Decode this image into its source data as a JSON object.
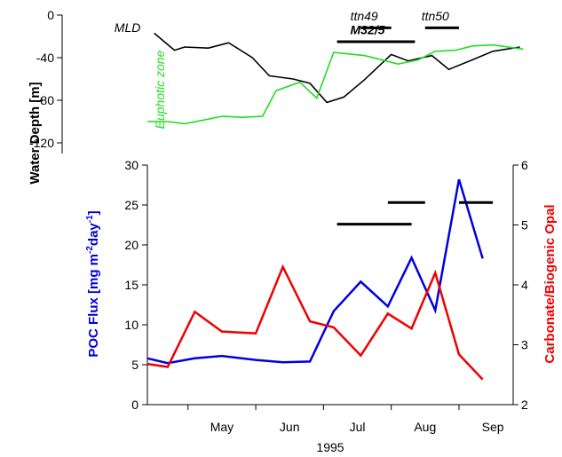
{
  "chart_data": {
    "type": "line",
    "xlabel": "1995",
    "x_tick_labels": [
      "May",
      "Jun",
      "Jul",
      "Aug",
      "Sep"
    ],
    "x_tick_months": [
      5,
      6,
      7,
      8,
      9
    ],
    "xlim_months": [
      4.4,
      9.8
    ],
    "depth_panel": {
      "ylabel": "Water Depth [m]",
      "ylim": [
        -130,
        0
      ],
      "yticks": [
        0,
        -40,
        -80,
        -120
      ],
      "series": [
        {
          "name": "MLD",
          "color": "#000000",
          "x_months": [
            4.5,
            4.8,
            4.95,
            5.3,
            5.6,
            5.95,
            6.2,
            6.55,
            6.8,
            7.05,
            7.3,
            7.6,
            8.0,
            8.25,
            8.6,
            8.85,
            9.2,
            9.5,
            9.9
          ],
          "y": [
            -17,
            -33,
            -30,
            -31,
            -26,
            -40,
            -57,
            -60,
            -64,
            -82,
            -77,
            -61,
            -37,
            -43,
            -38,
            -51,
            -42,
            -34,
            -30
          ]
        },
        {
          "name": "Euphotic zone",
          "color": "#22dd22",
          "x_months": [
            4.4,
            4.7,
            4.95,
            5.2,
            5.5,
            5.8,
            6.1,
            6.3,
            6.65,
            6.9,
            7.15,
            7.6,
            7.8,
            8.1,
            8.4,
            8.65,
            8.95,
            9.2,
            9.5,
            9.95
          ],
          "y": [
            -100,
            -100,
            -102,
            -99,
            -95,
            -96,
            -95,
            -71,
            -63,
            -78,
            -35,
            -38,
            -41,
            -46,
            -42,
            -34,
            -33,
            -29,
            -28,
            -32
          ]
        }
      ]
    },
    "flux_panel": {
      "ylabel_left": "POC Flux [mg m",
      "ylabel_left_sup1": "-2",
      "ylabel_left_mid": "day",
      "ylabel_left_sup2": "-1",
      "ylabel_left_end": "]",
      "ylim_left": [
        0,
        30
      ],
      "yticks_left": [
        0,
        5,
        10,
        15,
        20,
        25,
        30
      ],
      "ylabel_right": "Carbonate/Biogenic Opal",
      "ylim_right": [
        2,
        6
      ],
      "yticks_right": [
        2,
        3,
        4,
        5,
        6
      ],
      "series": [
        {
          "name": "POC Flux",
          "axis": "left",
          "color": "#0000dd",
          "x_months": [
            4.4,
            4.7,
            5.1,
            5.5,
            6.0,
            6.4,
            6.8,
            7.15,
            7.55,
            7.95,
            8.3,
            8.65,
            9.0,
            9.35
          ],
          "y": [
            5.8,
            5.2,
            5.8,
            6.1,
            5.6,
            5.3,
            5.4,
            11.7,
            15.4,
            12.3,
            18.4,
            11.8,
            28.2,
            18.3
          ]
        },
        {
          "name": "Carbonate/Biogenic Opal",
          "axis": "right",
          "color": "#ee0000",
          "x_months": [
            4.4,
            4.7,
            5.1,
            5.5,
            6.0,
            6.4,
            6.8,
            7.15,
            7.55,
            7.95,
            8.3,
            8.65,
            9.0,
            9.35
          ],
          "y": [
            2.68,
            2.63,
            3.55,
            3.22,
            3.19,
            4.3,
            3.39,
            3.29,
            2.82,
            3.52,
            3.27,
            4.2,
            2.84,
            2.42
          ]
        }
      ]
    },
    "annotations": [
      {
        "text": "ttn49",
        "x_months": 7.6,
        "depth": -5
      },
      {
        "text": "ttn50",
        "x_months": 8.65,
        "depth": -5
      },
      {
        "text": "M32/5",
        "x_months": 7.65,
        "depth": -18
      },
      {
        "text": "MLD",
        "x_months": 4.3,
        "depth": -16
      },
      {
        "text": "Euphotic zone",
        "x_months": 4.65,
        "depth": -70
      }
    ],
    "cruise_bars_depth": [
      {
        "x_months": [
          7.55,
          8.0
        ],
        "depth": -12
      },
      {
        "x_months": [
          8.5,
          9.0
        ],
        "depth": -12
      },
      {
        "x_months": [
          7.2,
          8.35
        ],
        "depth": -25
      }
    ],
    "cruise_bars_flux": [
      {
        "x_months": [
          7.95,
          8.5
        ],
        "y": 25.3
      },
      {
        "x_months": [
          7.2,
          8.3
        ],
        "y": 22.6
      },
      {
        "x_months": [
          9.0,
          9.5
        ],
        "y": 25.3
      }
    ]
  }
}
